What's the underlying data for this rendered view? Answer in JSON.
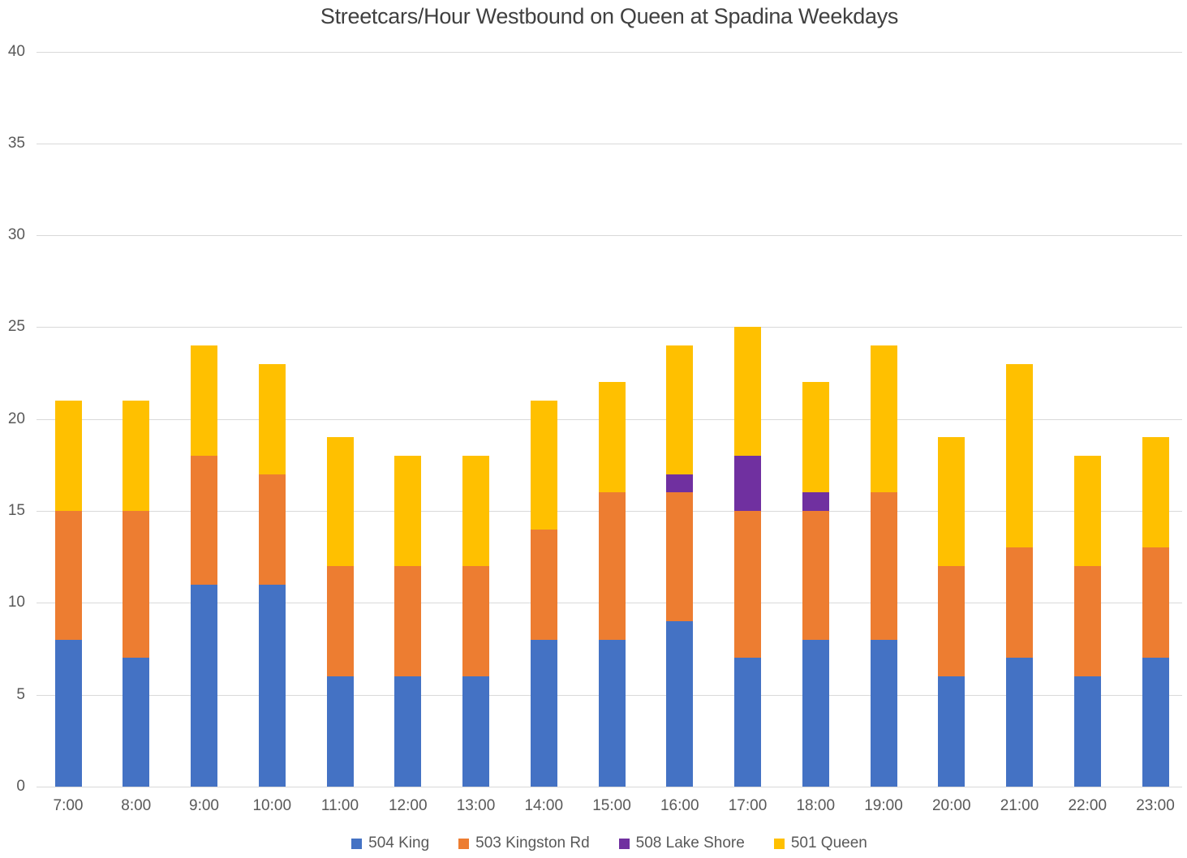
{
  "title": "Streetcars/Hour Westbound on Queen at Spadina Weekdays",
  "colors": {
    "background": "#FFFFFF",
    "gridline": "#D9D9D9",
    "axis_text": "#595959",
    "title_text": "#404040"
  },
  "chart_data": {
    "type": "bar",
    "stacked": true,
    "title": "Streetcars/Hour Westbound on Queen at Spadina Weekdays",
    "xlabel": "",
    "ylabel": "",
    "ylim": [
      0,
      40
    ],
    "yticks": [
      0,
      5,
      10,
      15,
      20,
      25,
      30,
      35,
      40
    ],
    "grid": true,
    "legend_position": "bottom",
    "categories": [
      "7:00",
      "8:00",
      "9:00",
      "10:00",
      "11:00",
      "12:00",
      "13:00",
      "14:00",
      "15:00",
      "16:00",
      "17:00",
      "18:00",
      "19:00",
      "20:00",
      "21:00",
      "22:00",
      "23:00"
    ],
    "series": [
      {
        "name": "504 King",
        "color": "#4472C4",
        "values": [
          8,
          7,
          11,
          11,
          6,
          6,
          6,
          8,
          8,
          9,
          7,
          8,
          8,
          6,
          7,
          6,
          7
        ]
      },
      {
        "name": "503 Kingston Rd",
        "color": "#ED7D31",
        "values": [
          7,
          8,
          7,
          6,
          6,
          6,
          6,
          6,
          8,
          7,
          8,
          7,
          8,
          6,
          6,
          6,
          6
        ]
      },
      {
        "name": "508 Lake Shore",
        "color": "#7030A0",
        "values": [
          0,
          0,
          0,
          0,
          0,
          0,
          0,
          0,
          0,
          1,
          3,
          1,
          0,
          0,
          0,
          0,
          0
        ]
      },
      {
        "name": "501 Queen",
        "color": "#FFC000",
        "values": [
          6,
          6,
          6,
          6,
          7,
          6,
          6,
          7,
          6,
          7,
          7,
          6,
          8,
          7,
          10,
          6,
          6
        ]
      }
    ],
    "totals": [
      21,
      21,
      24,
      23,
      19,
      18,
      18,
      21,
      22,
      24,
      25,
      22,
      24,
      19,
      23,
      18,
      19
    ]
  }
}
